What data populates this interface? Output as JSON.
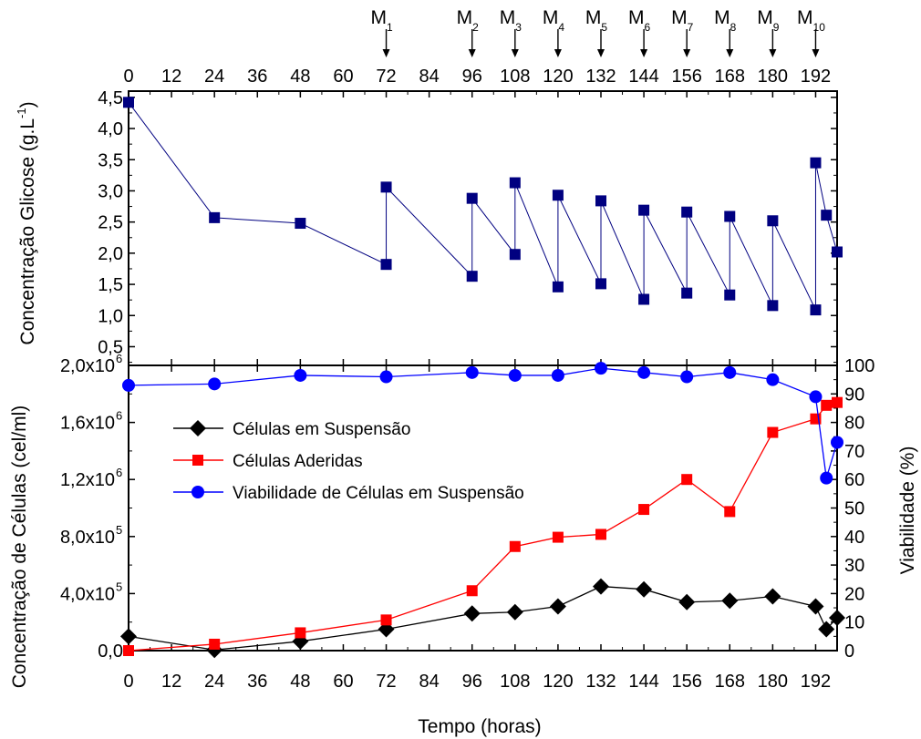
{
  "chart_data": [
    {
      "type": "line",
      "panel": "top",
      "ylabel": "Concentração Glicose (g.L",
      "ylabel_sup": "-1",
      "ylabel_close": ")",
      "xlim": [
        0,
        198
      ],
      "ylim": [
        0.2,
        4.6
      ],
      "top_axis_ticks": [
        0,
        12,
        24,
        36,
        48,
        60,
        72,
        84,
        96,
        108,
        120,
        132,
        144,
        156,
        168,
        180,
        192
      ],
      "y_ticks": [
        "0,5",
        "1,0",
        "1,5",
        "2,0",
        "2,5",
        "3,0",
        "3,5",
        "4,0",
        "4,5"
      ],
      "y_tick_values": [
        0.5,
        1.0,
        1.5,
        2.0,
        2.5,
        3.0,
        3.5,
        4.0,
        4.5
      ],
      "annotations": [
        {
          "label": "M",
          "sub": "1",
          "x": 72
        },
        {
          "label": "M",
          "sub": "2",
          "x": 96
        },
        {
          "label": "M",
          "sub": "3",
          "x": 108
        },
        {
          "label": "M",
          "sub": "4",
          "x": 120
        },
        {
          "label": "M",
          "sub": "5",
          "x": 132
        },
        {
          "label": "M",
          "sub": "6",
          "x": 144
        },
        {
          "label": "M",
          "sub": "7",
          "x": 156
        },
        {
          "label": "M",
          "sub": "8",
          "x": 168
        },
        {
          "label": "M",
          "sub": "9",
          "x": 180
        },
        {
          "label": "M",
          "sub": "10",
          "x": 192
        }
      ],
      "series": [
        {
          "marker": "square",
          "color": "#000080",
          "x": [
            0,
            24,
            48,
            72,
            72,
            96,
            96,
            108,
            108,
            120,
            120,
            132,
            132,
            144,
            144,
            156,
            156,
            168,
            168,
            180,
            180,
            192,
            192,
            195,
            198
          ],
          "y": [
            4.42,
            2.57,
            2.48,
            1.82,
            3.06,
            1.63,
            2.88,
            1.98,
            3.13,
            1.46,
            2.93,
            1.51,
            2.84,
            1.26,
            2.69,
            1.36,
            2.66,
            1.33,
            2.59,
            1.16,
            2.52,
            1.09,
            3.45,
            2.61,
            2.02
          ]
        }
      ]
    },
    {
      "type": "line",
      "panel": "bottom",
      "xlabel": "Tempo (horas)",
      "ylabel": "Concentração de Células (cel/ml)",
      "y2label": "Viabilidade (%)",
      "xlim": [
        0,
        198
      ],
      "ylim": [
        0,
        2000000
      ],
      "y2lim": [
        0,
        100
      ],
      "x_ticks": [
        0,
        12,
        24,
        36,
        48,
        60,
        72,
        84,
        96,
        108,
        120,
        132,
        144,
        156,
        168,
        180,
        192
      ],
      "y_ticks": [
        {
          "value": 0,
          "base": "0,0",
          "exp": ""
        },
        {
          "value": 400000,
          "base": "4,0x10",
          "exp": "5"
        },
        {
          "value": 800000,
          "base": "8,0x10",
          "exp": "5"
        },
        {
          "value": 1200000,
          "base": "1,2x10",
          "exp": "6"
        },
        {
          "value": 1600000,
          "base": "1,6x10",
          "exp": "6"
        },
        {
          "value": 2000000,
          "base": "2,0x10",
          "exp": "6"
        }
      ],
      "y2_ticks": [
        0,
        10,
        20,
        30,
        40,
        50,
        60,
        70,
        80,
        90,
        100
      ],
      "legend_position": "upper-left",
      "series": [
        {
          "name": "Células em Suspensão",
          "marker": "diamond",
          "color": "#000000",
          "axis": "left",
          "x": [
            0,
            24,
            48,
            72,
            96,
            108,
            120,
            132,
            144,
            156,
            168,
            180,
            192,
            195,
            198
          ],
          "y": [
            100000,
            5000,
            65000,
            150000,
            260000,
            270000,
            310000,
            450000,
            430000,
            340000,
            350000,
            380000,
            310000,
            150000,
            230000
          ]
        },
        {
          "name": "Células Aderidas",
          "marker": "square",
          "color": "#ff0000",
          "axis": "left",
          "x": [
            0,
            24,
            48,
            72,
            96,
            108,
            120,
            132,
            144,
            156,
            168,
            180,
            192,
            195,
            198
          ],
          "y": [
            0,
            45000,
            125000,
            215000,
            420000,
            730000,
            795000,
            815000,
            990000,
            1200000,
            975000,
            1530000,
            1625000,
            1720000,
            1740000
          ]
        },
        {
          "name": "Viabilidade de Células em Suspensão",
          "marker": "circle",
          "color": "#0000ff",
          "axis": "right",
          "x": [
            0,
            24,
            48,
            72,
            96,
            108,
            120,
            132,
            144,
            156,
            168,
            180,
            192,
            195,
            198
          ],
          "y": [
            93,
            93.5,
            96.5,
            96,
            97.5,
            96.5,
            96.5,
            99,
            97.5,
            96,
            97.5,
            95,
            89,
            60.5,
            73
          ]
        }
      ]
    }
  ]
}
